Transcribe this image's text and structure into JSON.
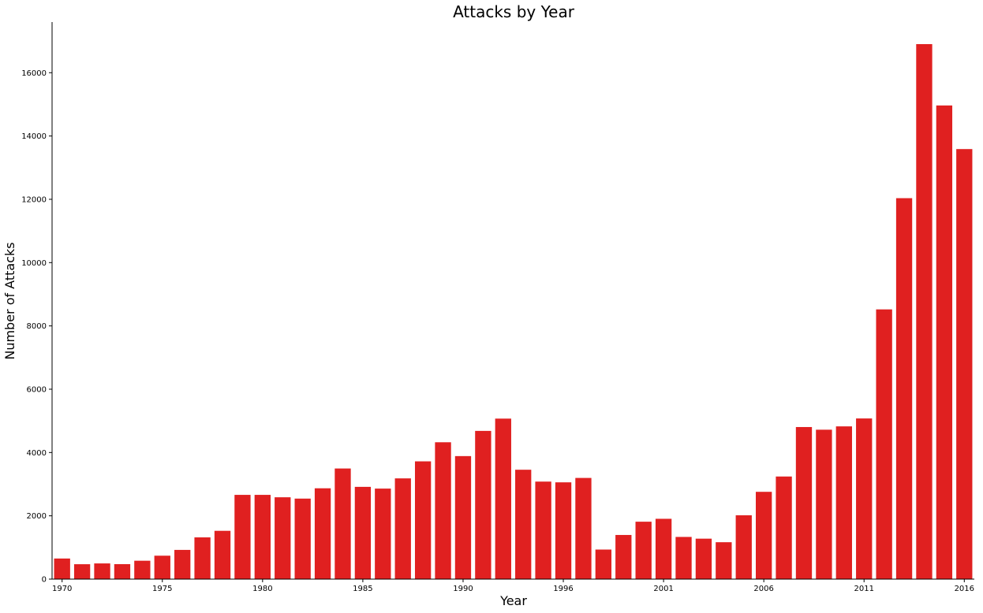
{
  "chart_data": {
    "type": "bar",
    "title": "Attacks by Year",
    "xlabel": "Year",
    "ylabel": "Number of Attacks",
    "color": "#e02020",
    "grid": false,
    "ylim": [
      0,
      17600
    ],
    "yticks": [
      0,
      2000,
      4000,
      6000,
      8000,
      10000,
      12000,
      14000,
      16000
    ],
    "xtick_labels": [
      "1970",
      "1975",
      "1980",
      "1985",
      "1990",
      "1996",
      "2001",
      "2006",
      "2011",
      "2016"
    ],
    "categories": [
      "1970",
      "1971",
      "1972",
      "1973",
      "1974",
      "1975",
      "1976",
      "1977",
      "1978",
      "1979",
      "1980",
      "1981",
      "1982",
      "1983",
      "1984",
      "1985",
      "1986",
      "1987",
      "1988",
      "1989",
      "1990",
      "1991",
      "1992",
      "1994",
      "1995",
      "1996",
      "1997",
      "1998",
      "1999",
      "2000",
      "2001",
      "2002",
      "2003",
      "2004",
      "2005",
      "2006",
      "2007",
      "2008",
      "2009",
      "2010",
      "2011",
      "2012",
      "2013",
      "2014",
      "2015",
      "2016"
    ],
    "values": [
      651,
      471,
      496,
      473,
      581,
      740,
      923,
      1319,
      1526,
      2662,
      2662,
      2586,
      2544,
      2870,
      3495,
      2915,
      2860,
      3183,
      3721,
      4324,
      3887,
      4683,
      5071,
      3456,
      3081,
      3058,
      3197,
      934,
      1395,
      1814,
      1906,
      1333,
      1278,
      1166,
      2017,
      2758,
      3242,
      4805,
      4721,
      4826,
      5076,
      8522,
      12036,
      16903,
      14965,
      13587
    ]
  }
}
